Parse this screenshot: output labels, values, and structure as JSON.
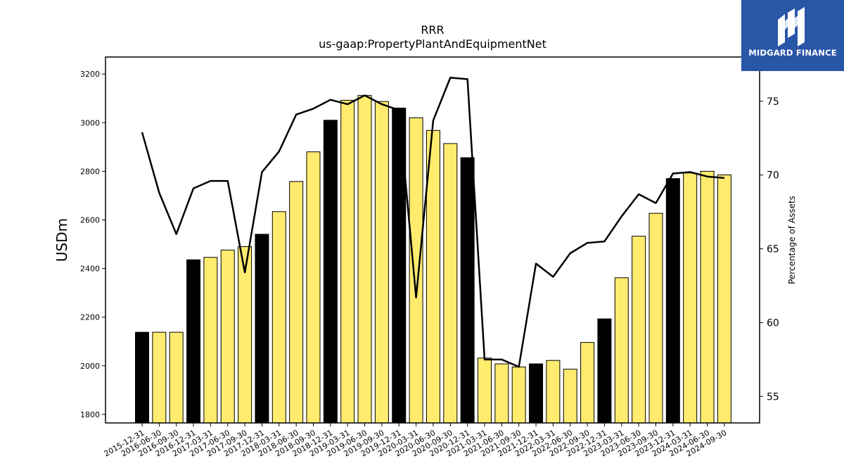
{
  "chart_data": {
    "type": "bar",
    "title": "RRR",
    "subtitle": "us-gaap:PropertyPlantAndEquipmentNet",
    "ylabel": "USDm",
    "y2label": "Percentage of Assets",
    "ylim": [
      1765,
      3270
    ],
    "y2lim": [
      53.2,
      78.0
    ],
    "yticks": [
      1800,
      2000,
      2200,
      2400,
      2600,
      2800,
      3000,
      3200
    ],
    "y2ticks": [
      55,
      60,
      65,
      70,
      75
    ],
    "categories": [
      "2015-12-31",
      "2016-06-30",
      "2016-09-30",
      "2016-12-31",
      "2017-03-31",
      "2017-06-30",
      "2017-09-30",
      "2017-12-31",
      "2018-03-31",
      "2018-06-30",
      "2018-09-30",
      "2018-12-31",
      "2019-03-31",
      "2019-06-30",
      "2019-09-30",
      "2019-12-31",
      "2020-03-31",
      "2020-06-30",
      "2020-09-30",
      "2020-12-31",
      "2021-03-31",
      "2021-06-30",
      "2021-09-30",
      "2021-12-31",
      "2022-03-31",
      "2022-06-30",
      "2022-09-30",
      "2022-12-31",
      "2023-03-31",
      "2023-06-30",
      "2023-09-30",
      "2023-12-31",
      "2024-03-31",
      "2024-06-30",
      "2024-09-30"
    ],
    "series": [
      {
        "type": "bar",
        "values": [
          2138,
          2138,
          2138,
          2436,
          2446,
          2476,
          2490,
          2541,
          2634,
          2758,
          2880,
          3010,
          3092,
          3112,
          3087,
          3060,
          3020,
          2968,
          2914,
          2856,
          2032,
          2008,
          1995,
          2008,
          2022,
          1986,
          2096,
          2193,
          2362,
          2533,
          2627,
          2770,
          2793,
          2800,
          2785
        ],
        "colors": [
          "#000000",
          "#ffeb6e",
          "#ffeb6e",
          "#000000",
          "#ffeb6e",
          "#ffeb6e",
          "#ffeb6e",
          "#000000",
          "#ffeb6e",
          "#ffeb6e",
          "#ffeb6e",
          "#000000",
          "#ffeb6e",
          "#ffeb6e",
          "#ffeb6e",
          "#000000",
          "#ffeb6e",
          "#ffeb6e",
          "#ffeb6e",
          "#000000",
          "#ffeb6e",
          "#ffeb6e",
          "#ffeb6e",
          "#000000",
          "#ffeb6e",
          "#ffeb6e",
          "#ffeb6e",
          "#000000",
          "#ffeb6e",
          "#ffeb6e",
          "#ffeb6e",
          "#000000",
          "#ffeb6e",
          "#ffeb6e",
          "#ffeb6e"
        ]
      },
      {
        "type": "line",
        "axis": "right",
        "color": "#000000",
        "values": [
          72.9,
          68.8,
          66.0,
          69.1,
          69.6,
          69.6,
          63.4,
          70.2,
          71.6,
          74.1,
          74.5,
          75.1,
          74.8,
          75.4,
          74.8,
          74.4,
          61.7,
          73.7,
          76.6,
          76.5,
          57.5,
          57.5,
          57.0,
          64.0,
          63.1,
          64.7,
          65.4,
          65.5,
          67.2,
          68.7,
          68.1,
          70.1,
          70.2,
          69.9,
          69.8
        ]
      }
    ],
    "grid": false,
    "legend": "none"
  },
  "logo": {
    "text": "MIDGARD FINANCE",
    "background": "#2a56a8"
  }
}
